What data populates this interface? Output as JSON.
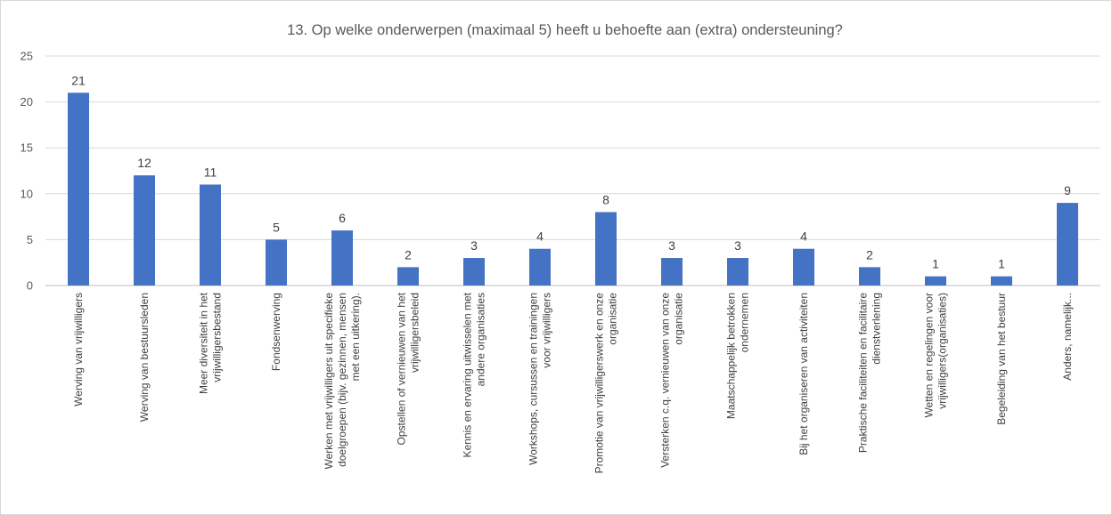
{
  "chart_data": {
    "type": "bar",
    "title": "13. Op welke onderwerpen (maximaal 5) heeft u behoefte aan (extra) ondersteuning?",
    "xlabel": "",
    "ylabel": "",
    "ylim": [
      0,
      25
    ],
    "yticks": [
      "0",
      "5",
      "10",
      "15",
      "20",
      "25"
    ],
    "grid": true,
    "legend": "none",
    "bar_color": "#4472C4",
    "categories": [
      [
        "Werving van vrijwilligers"
      ],
      [
        "Werving van bestuursleden"
      ],
      [
        "Meer diversiteit in het",
        "vrijwilligersbestand"
      ],
      [
        "Fondsenwerving"
      ],
      [
        "Werken met vrijwilligers uit specifieke",
        "doelgroepen (bijv. gezinnen, mensen",
        "met een uitkering)."
      ],
      [
        "Opstellen of vernieuwen van het",
        "vrijwilligersbeleid"
      ],
      [
        "Kennis en ervaring uitwisselen met",
        "andere organisaties"
      ],
      [
        "Workshops, cursussen en trainingen",
        "voor vrijwilligers"
      ],
      [
        "Promotie van vrijwilligerswerk en onze",
        "organisatie"
      ],
      [
        "Versterken c.q. vernieuwen van onze",
        "organisatie"
      ],
      [
        "Maatschappelijk betrokken",
        "ondernemen"
      ],
      [
        "Bij het organiseren van activiteiten"
      ],
      [
        "Praktische faciliteiten en facilitaire",
        "dienstverlening"
      ],
      [
        "Wetten en regelingen voor",
        "vrijwilligers(organisaties)"
      ],
      [
        "Begeleiding van het bestuur"
      ],
      [
        "Anders, namelijk..."
      ]
    ],
    "values": [
      21,
      12,
      11,
      5,
      6,
      2,
      3,
      4,
      8,
      3,
      3,
      4,
      2,
      1,
      1,
      9
    ],
    "data_labels": [
      "21",
      "12",
      "11",
      "5",
      "6",
      "2",
      "3",
      "4",
      "8",
      "3",
      "3",
      "4",
      "2",
      "1",
      "1",
      "9"
    ]
  }
}
